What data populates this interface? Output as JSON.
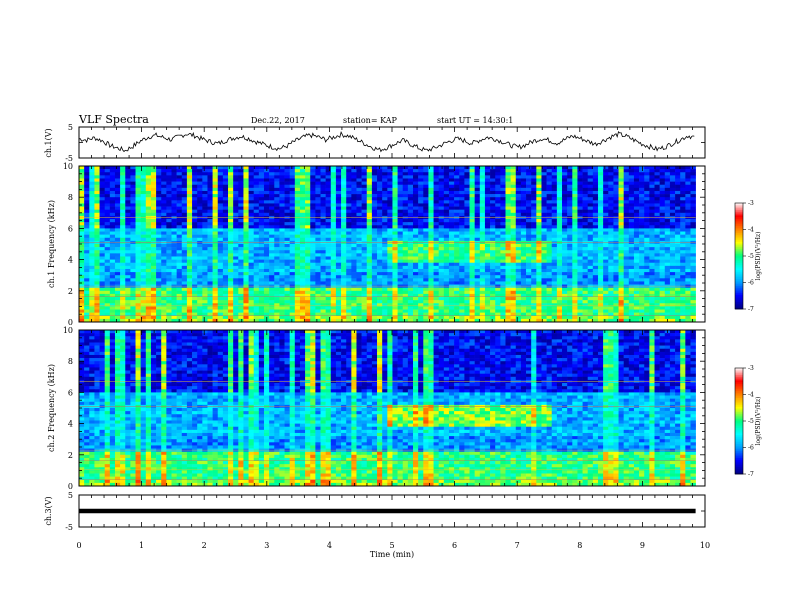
{
  "header": {
    "title": "VLF Spectra",
    "date": "Dec.22, 2017",
    "station": "station= KAP",
    "start": "start UT = 14:30:1"
  },
  "chart_data": [
    {
      "type": "line",
      "panel": "ch1-waveform",
      "ylabel": "ch.1(V)",
      "ylim": [
        -5,
        5
      ],
      "yticks": [
        "5",
        "-5"
      ],
      "xlim": [
        0,
        10
      ],
      "x_end": 9.85,
      "series": [
        {
          "values": [
            1.2,
            0.8,
            1.5,
            0.6,
            -0.9,
            -1.8,
            -2.6,
            -1.2,
            0.5,
            1.8,
            2.3,
            1.6,
            0.9,
            2.0,
            2.8,
            2.2,
            1.1,
            0.3,
            -0.4,
            0.6,
            1.4,
            2.0,
            1.3,
            0.2,
            -0.6,
            -1.4,
            -2.0,
            -1.1,
            0.4,
            1.6,
            2.4,
            1.8,
            0.9,
            1.7,
            2.6,
            2.1,
            1.0,
            -0.3,
            -1.5,
            -2.4,
            -1.6,
            -0.4,
            0.7,
            -0.5,
            -1.7,
            -2.6,
            -1.9,
            -0.8,
            0.3,
            1.2,
            0.6,
            -0.3,
            0.8,
            1.7,
            1.1,
            0.2,
            -0.9,
            -1.6,
            -0.7,
            0.5,
            1.3,
            0.7,
            -0.2,
            0.9,
            2.1,
            1.4,
            0.4,
            -0.5,
            0.6,
            1.8,
            2.7,
            2.0,
            0.8,
            -0.4,
            -1.3,
            -2.2,
            -1.5,
            -0.3,
            0.9,
            2.2,
            1.6
          ]
        }
      ]
    },
    {
      "type": "heatmap",
      "panel": "ch1-spectrogram",
      "ylabel": "ch.1 Frequency (kHz)",
      "ylim": [
        0,
        10
      ],
      "yticks": [
        "0",
        "2",
        "4",
        "6",
        "8",
        "10"
      ],
      "xlim": [
        0,
        10
      ],
      "x_end": 9.85,
      "colorbar": {
        "label": "log(PSD)(V²/Hz)",
        "ticks": [
          "-3",
          "-4",
          "-5",
          "-6",
          "-7"
        ],
        "range": [
          -7,
          -3
        ]
      },
      "description_bands_kHz": [
        0,
        10
      ]
    },
    {
      "type": "heatmap",
      "panel": "ch2-spectrogram",
      "ylabel": "ch.2 Frequency (kHz)",
      "ylim": [
        0,
        10
      ],
      "yticks": [
        "0",
        "2",
        "4",
        "6",
        "8",
        "10"
      ],
      "xlim": [
        0,
        10
      ],
      "x_end": 9.85,
      "colorbar": {
        "label": "log(PSD)(V²/Hz)",
        "ticks": [
          "-3",
          "-4",
          "-5",
          "-6",
          "-7"
        ],
        "range": [
          -7,
          -3
        ]
      }
    },
    {
      "type": "line",
      "panel": "ch3-waveform",
      "ylabel": "ch.3(V)",
      "ylim": [
        -5,
        5
      ],
      "yticks": [
        "5",
        "-5"
      ],
      "xlim": [
        0,
        10
      ],
      "x_end": 9.85,
      "series": [
        {
          "values": [
            0,
            0
          ]
        }
      ]
    }
  ],
  "xaxis": {
    "label": "Time (min)",
    "ticks": [
      "0",
      "1",
      "2",
      "3",
      "4",
      "5",
      "6",
      "7",
      "8",
      "9",
      "10"
    ]
  },
  "colors": {
    "frame": "#000000",
    "waveform": "#000000",
    "colormap": [
      "#000080",
      "#0000ff",
      "#00a0ff",
      "#00ffff",
      "#00ff80",
      "#ffff00",
      "#ff8000",
      "#ff0000",
      "#ffffff"
    ]
  }
}
